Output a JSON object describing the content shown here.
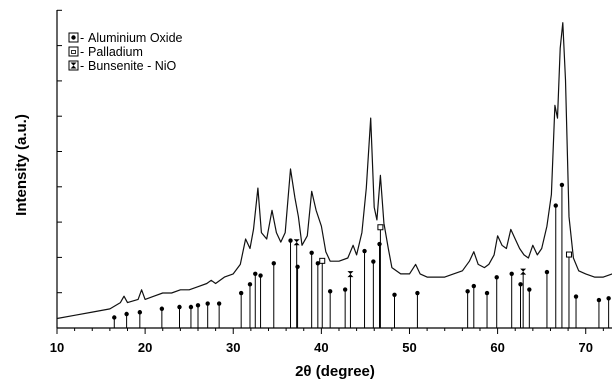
{
  "chart_data": {
    "type": "line",
    "title": "",
    "xlabel": "2θ (degree)",
    "ylabel": "Intensity (a.u.)",
    "xlim": [
      10,
      73
    ],
    "x_ticks": [
      10,
      20,
      30,
      40,
      50,
      60,
      70
    ],
    "y_tick_count": 9,
    "grid": false,
    "legend_position": "top-left",
    "legend": [
      {
        "label": "Aluminium Oxide",
        "marker": "dot"
      },
      {
        "label": "Palladium",
        "marker": "square"
      },
      {
        "label": "Bunsenite - NiO",
        "marker": "hourglass"
      }
    ],
    "series": [
      {
        "points": [
          [
            10,
            0.03
          ],
          [
            12,
            0.04
          ],
          [
            14,
            0.05
          ],
          [
            16,
            0.06
          ],
          [
            17.2,
            0.08
          ],
          [
            17.6,
            0.1
          ],
          [
            18.0,
            0.08
          ],
          [
            19.2,
            0.09
          ],
          [
            19.6,
            0.12
          ],
          [
            20.0,
            0.09
          ],
          [
            21.0,
            0.1
          ],
          [
            22.0,
            0.11
          ],
          [
            23.0,
            0.11
          ],
          [
            24.0,
            0.12
          ],
          [
            25.0,
            0.12
          ],
          [
            26.0,
            0.13
          ],
          [
            27.0,
            0.14
          ],
          [
            27.5,
            0.15
          ],
          [
            28.0,
            0.14
          ],
          [
            29.0,
            0.16
          ],
          [
            30.0,
            0.17
          ],
          [
            30.8,
            0.2
          ],
          [
            31.4,
            0.28
          ],
          [
            31.9,
            0.25
          ],
          [
            32.3,
            0.31
          ],
          [
            32.8,
            0.44
          ],
          [
            33.2,
            0.3
          ],
          [
            33.8,
            0.28
          ],
          [
            34.4,
            0.37
          ],
          [
            34.9,
            0.3
          ],
          [
            35.4,
            0.27
          ],
          [
            35.9,
            0.3
          ],
          [
            36.5,
            0.5
          ],
          [
            37.0,
            0.41
          ],
          [
            37.4,
            0.35
          ],
          [
            37.8,
            0.26
          ],
          [
            38.4,
            0.29
          ],
          [
            38.9,
            0.43
          ],
          [
            39.4,
            0.37
          ],
          [
            40.0,
            0.32
          ],
          [
            40.5,
            0.24
          ],
          [
            41.0,
            0.21
          ],
          [
            42.0,
            0.21
          ],
          [
            43.0,
            0.22
          ],
          [
            43.6,
            0.26
          ],
          [
            44.0,
            0.23
          ],
          [
            44.6,
            0.3
          ],
          [
            45.1,
            0.44
          ],
          [
            45.6,
            0.66
          ],
          [
            46.0,
            0.38
          ],
          [
            46.3,
            0.34
          ],
          [
            46.7,
            0.48
          ],
          [
            47.1,
            0.33
          ],
          [
            47.6,
            0.25
          ],
          [
            48.0,
            0.19
          ],
          [
            49.0,
            0.17
          ],
          [
            50.0,
            0.17
          ],
          [
            50.7,
            0.2
          ],
          [
            51.2,
            0.17
          ],
          [
            52.0,
            0.16
          ],
          [
            53.0,
            0.16
          ],
          [
            54.0,
            0.16
          ],
          [
            55.0,
            0.17
          ],
          [
            56.0,
            0.18
          ],
          [
            56.8,
            0.21
          ],
          [
            57.3,
            0.24
          ],
          [
            57.8,
            0.2
          ],
          [
            58.5,
            0.19
          ],
          [
            59.0,
            0.2
          ],
          [
            59.6,
            0.23
          ],
          [
            60.0,
            0.29
          ],
          [
            60.5,
            0.26
          ],
          [
            61.0,
            0.25
          ],
          [
            61.5,
            0.31
          ],
          [
            62.0,
            0.28
          ],
          [
            62.5,
            0.25
          ],
          [
            63.0,
            0.23
          ],
          [
            63.5,
            0.22
          ],
          [
            64.0,
            0.26
          ],
          [
            64.5,
            0.23
          ],
          [
            65.0,
            0.25
          ],
          [
            65.6,
            0.32
          ],
          [
            66.1,
            0.42
          ],
          [
            66.5,
            0.7
          ],
          [
            66.8,
            0.66
          ],
          [
            67.1,
            0.88
          ],
          [
            67.4,
            0.96
          ],
          [
            67.7,
            0.78
          ],
          [
            68.1,
            0.35
          ],
          [
            68.6,
            0.22
          ],
          [
            69.2,
            0.18
          ],
          [
            70.0,
            0.17
          ],
          [
            71.0,
            0.16
          ],
          [
            72.0,
            0.16
          ],
          [
            73.0,
            0.17
          ]
        ]
      }
    ],
    "reference_peaks": {
      "aluminium_oxide": [
        16.5,
        17.9,
        19.4,
        21.9,
        23.9,
        25.2,
        26.0,
        27.1,
        28.4,
        30.9,
        31.9,
        32.5,
        33.1,
        34.6,
        36.5,
        37.3,
        38.9,
        39.6,
        41.0,
        42.7,
        44.9,
        45.9,
        46.6,
        48.3,
        50.9,
        56.6,
        57.3,
        58.8,
        59.9,
        61.6,
        62.6,
        63.6,
        65.6,
        66.6,
        67.3,
        68.9,
        71.5,
        72.6
      ],
      "palladium": [
        40.1,
        46.7,
        68.1
      ],
      "bunsenite_nio": [
        37.2,
        43.3,
        62.9
      ]
    }
  }
}
